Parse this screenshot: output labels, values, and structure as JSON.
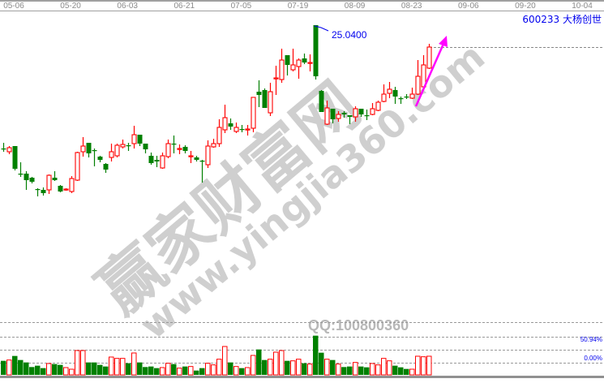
{
  "header": {
    "stock_title": "600233 大杨创世"
  },
  "watermark": {
    "site_cn": "赢家财富网",
    "site_url": "www.yingjia360.com",
    "qq": "QQ:100800360"
  },
  "colors": {
    "up": "#ff0000",
    "down": "#008000",
    "annotation": "#0000ee",
    "arrow": "#ff00ff",
    "watermark": "#c8c8c8"
  },
  "chart_data": {
    "type": "candlestick",
    "x_ticks": [
      "05-06",
      "05-20",
      "06-03",
      "06-21",
      "07-05",
      "07-19",
      "08-09",
      "08-23",
      "09-06",
      "09-20",
      "10-04"
    ],
    "annotation": {
      "label": "25.0400",
      "value": 25.04
    },
    "volume_labels": [
      "50.94%",
      "0.00%"
    ],
    "candles": [
      [
        18.96,
        19.24,
        18.8,
        18.96
      ],
      [
        18.8,
        19.08,
        18.68,
        19.0
      ],
      [
        19.08,
        19.08,
        17.88,
        17.96
      ],
      [
        17.72,
        18.28,
        17.56,
        17.72
      ],
      [
        17.72,
        17.84,
        16.92,
        17.4
      ],
      [
        17.52,
        17.56,
        17.24,
        17.32
      ],
      [
        16.96,
        17.0,
        16.6,
        16.96
      ],
      [
        16.92,
        17.04,
        16.64,
        16.76
      ],
      [
        16.92,
        17.68,
        16.72,
        17.64
      ],
      [
        17.52,
        17.84,
        17.36,
        17.4
      ],
      [
        17.12,
        17.16,
        16.8,
        16.84
      ],
      [
        16.92,
        17.0,
        16.88,
        16.96
      ],
      [
        16.84,
        17.6,
        16.76,
        17.48
      ],
      [
        17.4,
        18.8,
        17.36,
        18.76
      ],
      [
        18.8,
        19.52,
        18.56,
        19.08
      ],
      [
        19.24,
        19.24,
        18.52,
        18.72
      ],
      [
        18.88,
        18.96,
        18.08,
        18.88
      ],
      [
        18.56,
        18.6,
        18.28,
        18.4
      ],
      [
        18.2,
        18.24,
        17.76,
        17.92
      ],
      [
        18.52,
        19.2,
        18.32,
        18.8
      ],
      [
        18.6,
        19.2,
        18.52,
        19.12
      ],
      [
        19.04,
        19.4,
        18.96,
        19.16
      ],
      [
        19.12,
        19.24,
        18.84,
        19.12
      ],
      [
        19.2,
        20.08,
        18.96,
        19.64
      ],
      [
        19.64,
        19.64,
        19.08,
        19.2
      ],
      [
        19.2,
        19.2,
        18.72,
        18.92
      ],
      [
        18.6,
        18.76,
        18.16,
        18.24
      ],
      [
        18.4,
        18.6,
        18.04,
        18.32
      ],
      [
        18.0,
        18.76,
        17.96,
        18.6
      ],
      [
        18.56,
        19.4,
        18.48,
        19.2
      ],
      [
        19.2,
        19.6,
        18.72,
        19.2
      ],
      [
        18.92,
        19.16,
        18.68,
        18.96
      ],
      [
        19.04,
        19.12,
        18.72,
        18.84
      ],
      [
        18.6,
        18.84,
        18.24,
        18.6
      ],
      [
        18.52,
        18.6,
        18.32,
        18.4
      ],
      [
        18.36,
        18.4,
        17.28,
        18.32
      ],
      [
        18.16,
        19.36,
        18.0,
        19.08
      ],
      [
        19.04,
        19.44,
        19.0,
        19.2
      ],
      [
        19.2,
        20.4,
        19.04,
        20.0
      ],
      [
        19.88,
        21.12,
        19.72,
        20.48
      ],
      [
        20.2,
        20.44,
        19.88,
        20.04
      ],
      [
        19.8,
        20.24,
        19.72,
        20.0
      ],
      [
        19.92,
        20.12,
        19.76,
        19.92
      ],
      [
        19.92,
        20.12,
        19.6,
        19.92
      ],
      [
        19.96,
        21.48,
        19.76,
        21.48
      ],
      [
        21.76,
        22.32,
        21.0,
        21.6
      ],
      [
        21.84,
        21.92,
        20.96,
        20.96
      ],
      [
        20.72,
        22.2,
        20.56,
        21.76
      ],
      [
        22.4,
        23.04,
        21.6,
        22.44
      ],
      [
        22.36,
        23.88,
        22.2,
        23.32
      ],
      [
        23.56,
        23.56,
        22.56,
        23.08
      ],
      [
        22.84,
        23.88,
        22.76,
        23.08
      ],
      [
        23.0,
        23.4,
        22.4,
        23.32
      ],
      [
        23.4,
        23.64,
        23.12,
        23.2
      ],
      [
        23.2,
        23.6,
        22.76,
        23.2
      ],
      [
        25.04,
        25.04,
        22.36,
        22.52
      ],
      [
        21.8,
        21.84,
        20.76,
        20.76
      ],
      [
        20.16,
        21.32,
        20.12,
        20.96
      ],
      [
        20.92,
        20.92,
        20.2,
        20.4
      ],
      [
        20.44,
        20.8,
        20.28,
        20.64
      ],
      [
        20.72,
        20.8,
        20.48,
        20.64
      ],
      [
        20.6,
        20.6,
        20.16,
        20.52
      ],
      [
        20.52,
        21.04,
        20.28,
        20.92
      ],
      [
        20.92,
        20.92,
        20.52,
        20.64
      ],
      [
        20.6,
        20.88,
        20.36,
        20.6
      ],
      [
        20.64,
        21.2,
        20.6,
        20.92
      ],
      [
        20.84,
        21.32,
        20.8,
        21.24
      ],
      [
        21.28,
        22.12,
        21.24,
        21.64
      ],
      [
        21.68,
        22.24,
        21.44,
        21.88
      ],
      [
        21.84,
        22.0,
        21.16,
        21.52
      ],
      [
        21.44,
        21.52,
        21.16,
        21.44
      ],
      [
        21.52,
        21.64,
        21.4,
        21.52
      ],
      [
        21.44,
        21.96,
        21.4,
        21.64
      ],
      [
        21.64,
        23.32,
        21.6,
        22.52
      ],
      [
        22.0,
        23.56,
        21.96,
        23.08
      ],
      [
        22.92,
        24.12,
        22.88,
        23.96
      ]
    ],
    "doji_colors": {
      "0": "down",
      "3": "down",
      "6": "down",
      "16": "down",
      "22": "down",
      "30": "down",
      "33": "up",
      "42": "down",
      "43": "up",
      "54": "up",
      "64": "down",
      "70": "down",
      "71": "down"
    },
    "volume": [
      52,
      55,
      70,
      55,
      46,
      29,
      34,
      25,
      42,
      40,
      37,
      27,
      21,
      90,
      90,
      46,
      46,
      37,
      31,
      66,
      61,
      61,
      43,
      81,
      46,
      29,
      31,
      25,
      27,
      43,
      40,
      25,
      31,
      31,
      16,
      25,
      43,
      37,
      58,
      105,
      46,
      31,
      25,
      27,
      72,
      94,
      55,
      58,
      84,
      90,
      52,
      52,
      58,
      43,
      40,
      145,
      82,
      58,
      55,
      40,
      29,
      31,
      46,
      31,
      28,
      42,
      37,
      61,
      52,
      34,
      28,
      22,
      21,
      69,
      67,
      69
    ]
  }
}
